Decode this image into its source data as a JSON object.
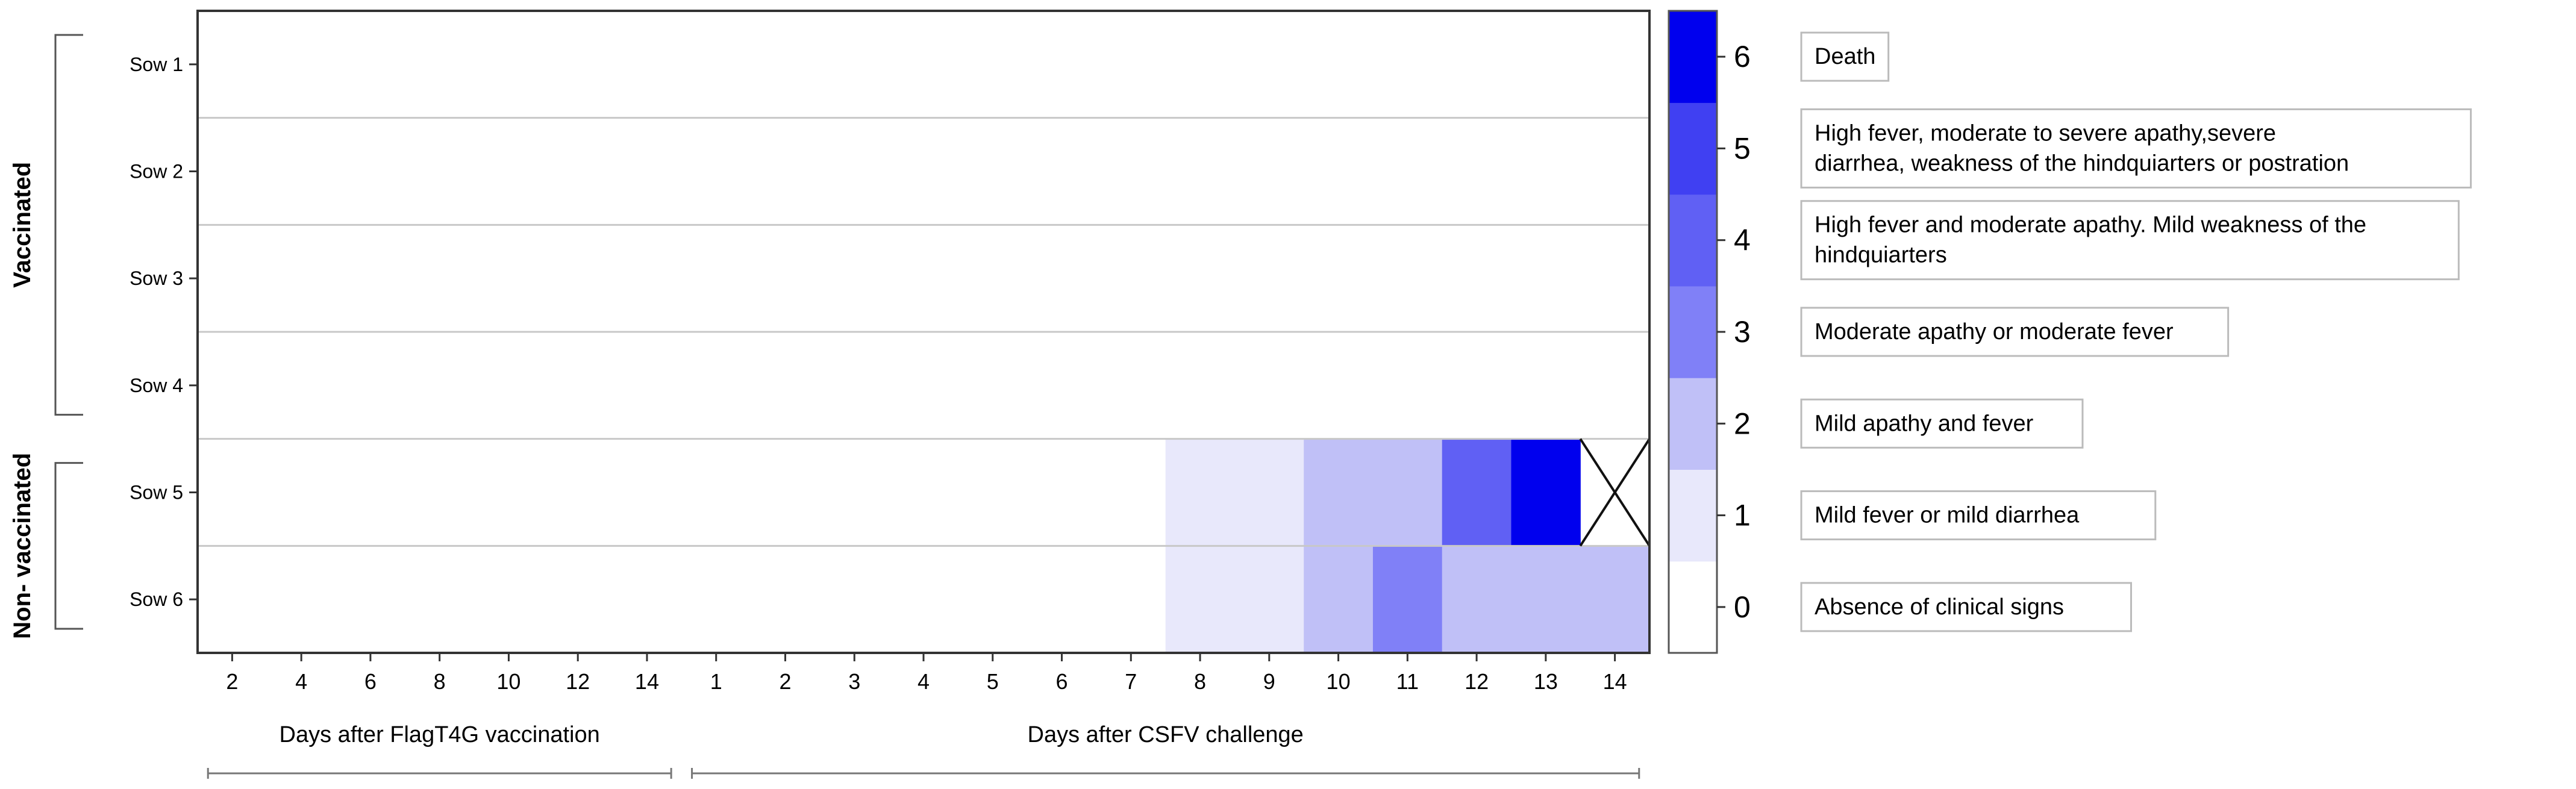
{
  "chart_data": {
    "type": "heatmap",
    "rows": [
      "Sow 1",
      "Sow 2",
      "Sow 3",
      "Sow 4",
      "Sow 5",
      "Sow 6"
    ],
    "group_labels": [
      {
        "label": "Vaccinated",
        "rows": [
          0,
          3
        ]
      },
      {
        "label": "Non- vaccinated",
        "rows": [
          4,
          5
        ]
      }
    ],
    "columns": [
      "2",
      "4",
      "6",
      "8",
      "10",
      "12",
      "14",
      "1",
      "2",
      "3",
      "4",
      "5",
      "6",
      "7",
      "8",
      "9",
      "10",
      "11",
      "12",
      "13",
      "14"
    ],
    "column_periods": [
      {
        "label": "Days after FlagT4G vaccination",
        "cols": [
          0,
          6
        ]
      },
      {
        "label": "Days after CSFV challenge",
        "cols": [
          7,
          20
        ]
      }
    ],
    "values": [
      [
        0,
        0,
        0,
        0,
        0,
        0,
        0,
        0,
        0,
        0,
        0,
        0,
        0,
        0,
        0,
        0,
        0,
        0,
        0,
        0,
        0
      ],
      [
        0,
        0,
        0,
        0,
        0,
        0,
        0,
        0,
        0,
        0,
        0,
        0,
        0,
        0,
        0,
        0,
        0,
        0,
        0,
        0,
        0
      ],
      [
        0,
        0,
        0,
        0,
        0,
        0,
        0,
        0,
        0,
        0,
        0,
        0,
        0,
        0,
        0,
        0,
        0,
        0,
        0,
        0,
        0
      ],
      [
        0,
        0,
        0,
        0,
        0,
        0,
        0,
        0,
        0,
        0,
        0,
        0,
        0,
        0,
        0,
        0,
        0,
        0,
        0,
        0,
        0
      ],
      [
        0,
        0,
        0,
        0,
        0,
        0,
        0,
        0,
        0,
        0,
        0,
        0,
        0,
        0,
        1,
        1,
        2,
        2,
        4,
        6,
        null
      ],
      [
        0,
        0,
        0,
        0,
        0,
        0,
        0,
        0,
        0,
        0,
        0,
        0,
        0,
        0,
        1,
        1,
        2,
        3,
        2,
        2,
        2
      ]
    ],
    "crossed_cells": [
      {
        "row": 4,
        "col": 20
      }
    ],
    "scale": {
      "min": 0,
      "max": 6,
      "colors": [
        "#ffffff",
        "#e8e8fb",
        "#c0c0f7",
        "#8080f7",
        "#6060f4",
        "#4040f2",
        "#0000ee"
      ],
      "ticks": [
        "0",
        "1",
        "2",
        "3",
        "4",
        "5",
        "6"
      ],
      "legend": [
        {
          "score": "6",
          "text": [
            "Death"
          ]
        },
        {
          "score": "5",
          "text": [
            "High fever, moderate to severe apathy,severe",
            "diarrhea, weakness of the hindquiarters or postration"
          ]
        },
        {
          "score": "4",
          "text": [
            "High fever and moderate apathy. Mild weakness of the",
            "hindquiarters"
          ]
        },
        {
          "score": "3",
          "text": [
            "Moderate apathy or moderate fever"
          ]
        },
        {
          "score": "2",
          "text": [
            "Mild apathy and fever"
          ]
        },
        {
          "score": "1",
          "text": [
            "Mild fever or mild diarrhea"
          ]
        },
        {
          "score": "0",
          "text": [
            "Absence of clinical signs"
          ]
        }
      ]
    },
    "grid": "horizontal row separators"
  }
}
